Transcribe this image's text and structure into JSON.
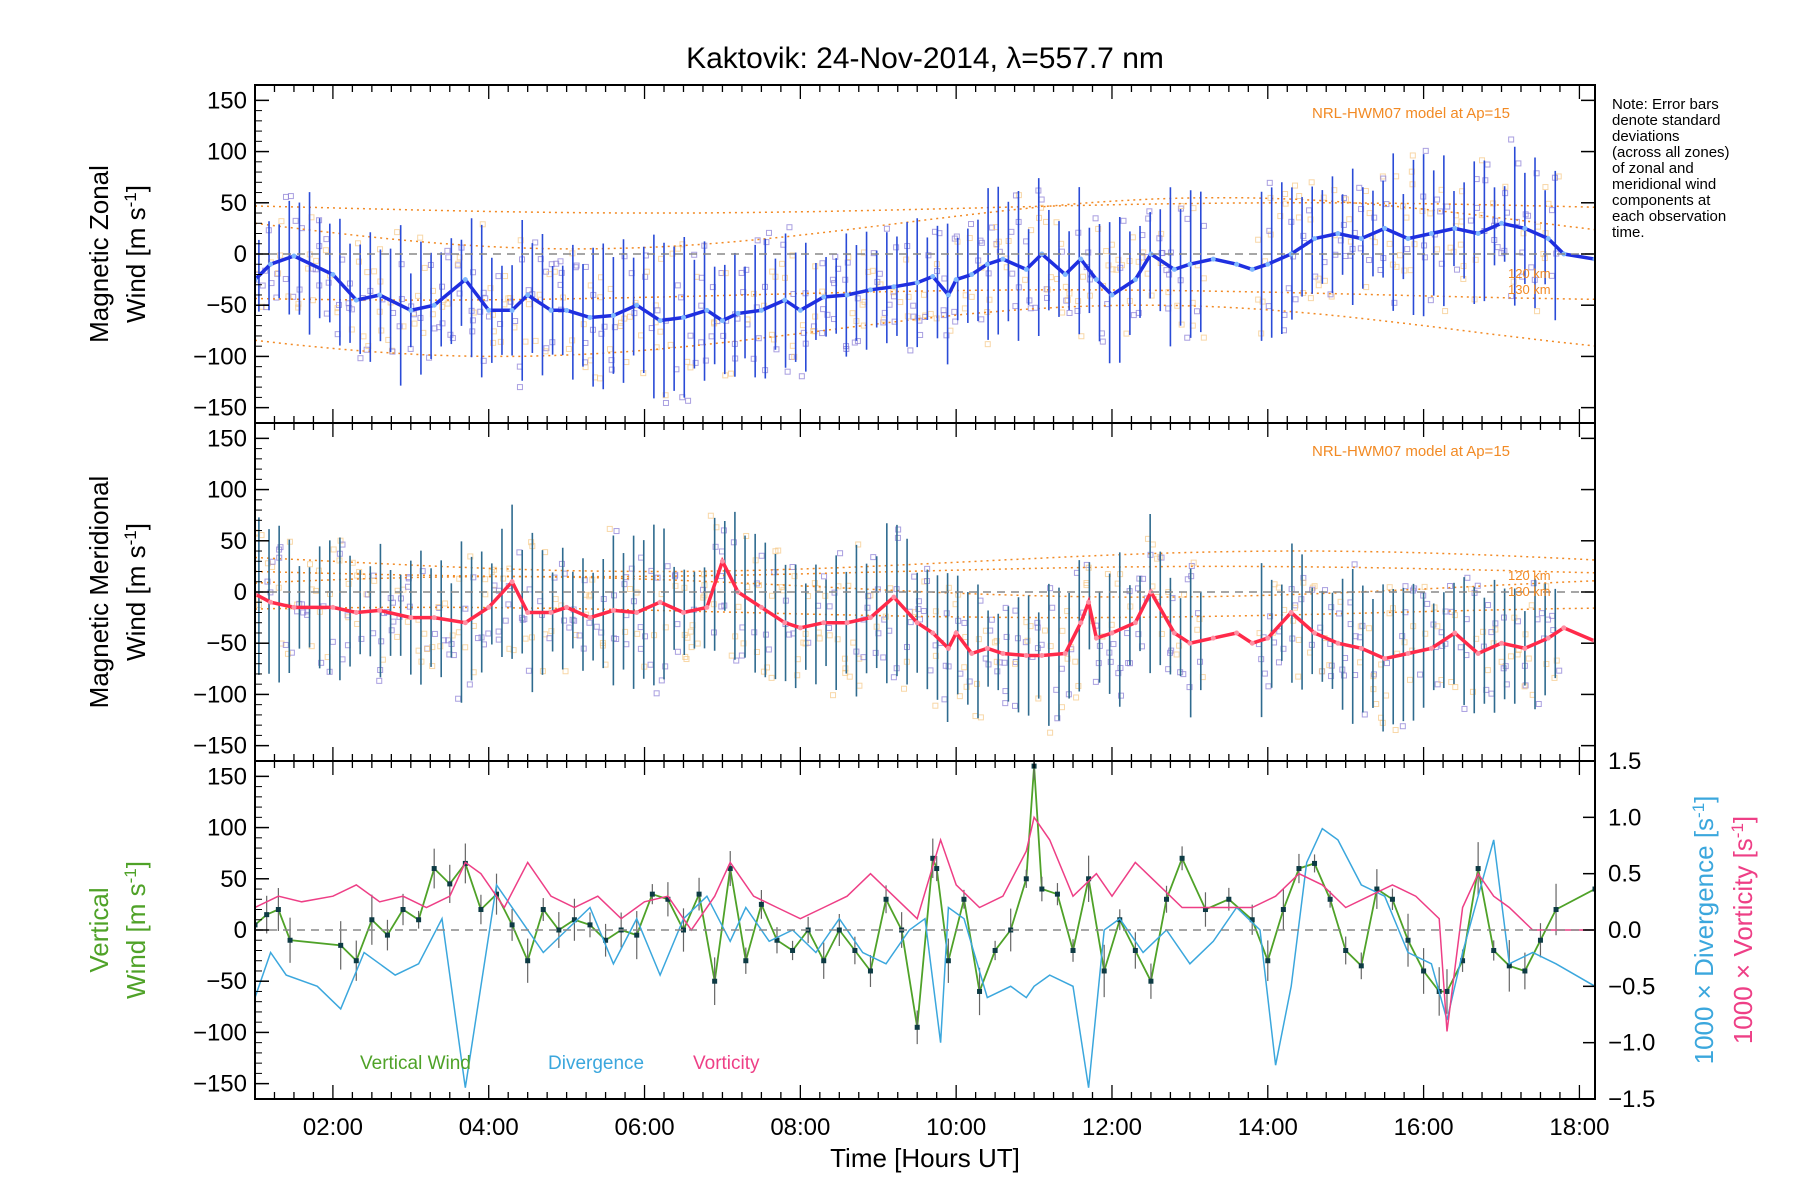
{
  "colors": {
    "zonal_line": "#1f2fe0",
    "zonal_bars": "#2a4bd7",
    "meridional_line": "#ff2a4a",
    "model": "#f28a24",
    "scatter_purple": "#8c7fd6",
    "scatter_orange": "#f6c98a",
    "vertical": "#4fa228",
    "divergence": "#3ba7dd",
    "vorticity": "#ee3f86",
    "zero_line": "#888888"
  },
  "chart_data": {
    "type": "line",
    "title": "Kaktovik: 24-Nov-2014, λ=557.7 nm",
    "xlabel": "Time [Hours UT]",
    "xlim": [
      1.0,
      18.2
    ],
    "x_tick_values": [
      2,
      4,
      6,
      8,
      10,
      12,
      14,
      16,
      18
    ],
    "x_tick_labels": [
      "02:00",
      "04:00",
      "06:00",
      "08:00",
      "10:00",
      "12:00",
      "14:00",
      "16:00",
      "18:00"
    ],
    "note_lines": [
      "Note: Error bars",
      "denote standard",
      "deviations",
      "(across all zones)",
      "of zonal and",
      "meridional wind",
      "components at",
      "each observation",
      "time."
    ],
    "panels": [
      {
        "id": "zonal",
        "ylabel_line1": "Magnetic Zonal",
        "ylabel_line2": "Wind [m s",
        "ylabel_sup": "-1",
        "ylabel_end": "]",
        "ylim": [
          -165,
          165
        ],
        "y_ticks": [
          -150,
          -100,
          -50,
          0,
          50,
          100,
          150
        ],
        "model_label": "NRL-HWM07 model at Ap=15",
        "model_alt_labels": [
          "120 km",
          "130 km"
        ],
        "series": [
          {
            "name": "Magnetic Zonal Wind",
            "x": [
              1.0,
              1.2,
              1.5,
              2.0,
              2.3,
              2.6,
              3.0,
              3.3,
              3.7,
              4.0,
              4.3,
              4.5,
              4.8,
              5.0,
              5.3,
              5.6,
              5.9,
              6.2,
              6.5,
              6.8,
              7.0,
              7.2,
              7.5,
              7.8,
              8.0,
              8.3,
              8.6,
              8.9,
              9.2,
              9.5,
              9.7,
              9.9,
              10.0,
              10.2,
              10.4,
              10.6,
              10.9,
              11.1,
              11.4,
              11.6,
              11.8,
              12.0,
              12.3,
              12.5,
              12.8,
              13.0,
              13.3,
              13.6,
              13.8,
              14.0,
              14.3,
              14.6,
              14.9,
              15.2,
              15.5,
              15.8,
              16.1,
              16.4,
              16.7,
              17.0,
              17.3,
              17.6,
              17.8,
              18.2
            ],
            "y": [
              -25,
              -10,
              -2,
              -20,
              -45,
              -40,
              -55,
              -50,
              -25,
              -55,
              -55,
              -40,
              -55,
              -55,
              -62,
              -60,
              -50,
              -65,
              -62,
              -55,
              -65,
              -58,
              -55,
              -45,
              -55,
              -42,
              -40,
              -35,
              -32,
              -28,
              -22,
              -40,
              -25,
              -20,
              -10,
              -5,
              -15,
              0,
              -20,
              -5,
              -25,
              -40,
              -25,
              0,
              -15,
              -10,
              -5,
              -10,
              -15,
              -10,
              0,
              15,
              20,
              15,
              25,
              15,
              20,
              25,
              20,
              30,
              25,
              15,
              0,
              -5
            ]
          }
        ]
      },
      {
        "id": "meridional",
        "ylabel_line1": "Magnetic Meridional",
        "ylabel_line2": "Wind [m s",
        "ylabel_sup": "-1",
        "ylabel_end": "]",
        "ylim": [
          -165,
          165
        ],
        "y_ticks": [
          -150,
          -100,
          -50,
          0,
          50,
          100,
          150
        ],
        "model_label": "NRL-HWM07 model at Ap=15",
        "model_alt_labels": [
          "120 km",
          "130 km"
        ],
        "series": [
          {
            "name": "Magnetic Meridional Wind",
            "x": [
              1.0,
              1.2,
              1.5,
              2.0,
              2.3,
              2.6,
              3.0,
              3.3,
              3.7,
              4.0,
              4.3,
              4.5,
              4.8,
              5.0,
              5.3,
              5.6,
              5.9,
              6.2,
              6.5,
              6.8,
              7.0,
              7.2,
              7.5,
              7.8,
              8.0,
              8.3,
              8.6,
              8.9,
              9.2,
              9.5,
              9.7,
              9.9,
              10.0,
              10.2,
              10.4,
              10.6,
              10.9,
              11.1,
              11.4,
              11.6,
              11.7,
              11.8,
              12.0,
              12.3,
              12.5,
              12.8,
              13.0,
              13.3,
              13.6,
              13.8,
              14.0,
              14.3,
              14.6,
              14.9,
              15.2,
              15.5,
              15.8,
              16.1,
              16.4,
              16.7,
              17.0,
              17.3,
              17.6,
              17.8,
              18.2
            ],
            "y": [
              -2,
              -10,
              -15,
              -15,
              -20,
              -18,
              -25,
              -25,
              -30,
              -15,
              10,
              -20,
              -20,
              -15,
              -25,
              -18,
              -20,
              -10,
              -20,
              -15,
              30,
              0,
              -15,
              -30,
              -35,
              -30,
              -30,
              -25,
              -5,
              -30,
              -40,
              -55,
              -40,
              -60,
              -55,
              -60,
              -62,
              -62,
              -60,
              -30,
              -10,
              -45,
              -40,
              -30,
              0,
              -40,
              -50,
              -45,
              -40,
              -50,
              -45,
              -20,
              -40,
              -50,
              -55,
              -65,
              -60,
              -55,
              -40,
              -60,
              -50,
              -55,
              -45,
              -35,
              -48
            ]
          }
        ]
      },
      {
        "id": "vertical",
        "ylabel_line1": "Vertical",
        "ylabel_line2": "Wind [m s",
        "ylabel_sup": "-1",
        "ylabel_end": "]",
        "ylim": [
          -165,
          165
        ],
        "y_ticks": [
          -150,
          -100,
          -50,
          0,
          50,
          100,
          150
        ],
        "y2_label_div": "1000 × Divergence [s",
        "y2_label_vort": "1000 × Vorticity [s",
        "y2_sup": "-1",
        "y2_end": "]",
        "y2lim": [
          -1.5,
          1.5
        ],
        "y2_ticks": [
          -1.5,
          -1.0,
          -0.5,
          0.0,
          0.5,
          1.0,
          1.5
        ],
        "y2_tick_labels": [
          "−1.5",
          "−1.0",
          "−0.5",
          "0.0",
          "0.5",
          "1.0",
          "1.5"
        ],
        "legend": [
          "Vertical Wind",
          "Divergence",
          "Vorticity"
        ],
        "series": [
          {
            "name": "Vertical Wind",
            "axis": "left",
            "x": [
              1.0,
              1.15,
              1.3,
              1.45,
              2.1,
              2.3,
              2.5,
              2.7,
              2.9,
              3.1,
              3.3,
              3.5,
              3.7,
              3.9,
              4.1,
              4.3,
              4.5,
              4.7,
              4.9,
              5.1,
              5.3,
              5.5,
              5.7,
              5.9,
              6.1,
              6.3,
              6.5,
              6.7,
              6.9,
              7.1,
              7.3,
              7.5,
              7.7,
              7.9,
              8.1,
              8.3,
              8.5,
              8.7,
              8.9,
              9.1,
              9.3,
              9.5,
              9.7,
              9.75,
              9.9,
              10.1,
              10.3,
              10.5,
              10.7,
              10.9,
              11.0,
              11.1,
              11.3,
              11.5,
              11.7,
              11.9,
              12.1,
              12.3,
              12.5,
              12.7,
              12.9,
              13.2,
              13.5,
              13.8,
              14.0,
              14.2,
              14.4,
              14.6,
              14.8,
              15.0,
              15.2,
              15.4,
              15.6,
              15.8,
              16.0,
              16.2,
              16.3,
              16.5,
              16.7,
              16.9,
              17.1,
              17.3,
              17.5,
              17.7,
              18.2
            ],
            "y": [
              5,
              15,
              20,
              -10,
              -15,
              -30,
              10,
              -5,
              20,
              10,
              60,
              45,
              65,
              20,
              35,
              5,
              -30,
              20,
              0,
              10,
              5,
              -10,
              0,
              -5,
              35,
              30,
              0,
              35,
              -50,
              60,
              -30,
              25,
              -10,
              -20,
              0,
              -30,
              0,
              -20,
              -40,
              30,
              0,
              -95,
              70,
              60,
              -30,
              30,
              -60,
              -20,
              0,
              50,
              160,
              40,
              35,
              -20,
              50,
              -40,
              10,
              -20,
              -50,
              30,
              70,
              20,
              30,
              10,
              -30,
              20,
              60,
              65,
              30,
              -20,
              -35,
              40,
              30,
              -10,
              -40,
              -60,
              -60,
              -30,
              60,
              -20,
              -35,
              -40,
              -10,
              20,
              40
            ]
          },
          {
            "name": "Divergence",
            "axis": "right",
            "x": [
              1.0,
              1.2,
              1.4,
              1.8,
              2.1,
              2.4,
              2.8,
              3.1,
              3.4,
              3.7,
              3.9,
              4.1,
              4.4,
              4.7,
              5.0,
              5.3,
              5.6,
              5.9,
              6.2,
              6.5,
              6.8,
              7.1,
              7.3,
              7.6,
              7.9,
              8.2,
              8.5,
              8.8,
              9.1,
              9.4,
              9.6,
              9.8,
              9.9,
              10.1,
              10.4,
              10.7,
              10.9,
              11.0,
              11.2,
              11.5,
              11.7,
              11.9,
              12.1,
              12.4,
              12.7,
              13.0,
              13.3,
              13.6,
              13.9,
              14.1,
              14.3,
              14.5,
              14.7,
              14.9,
              15.2,
              15.5,
              15.8,
              16.1,
              16.3,
              16.5,
              16.7,
              16.9,
              17.1,
              17.4,
              17.7,
              18.2
            ],
            "y": [
              -0.6,
              -0.2,
              -0.4,
              -0.5,
              -0.7,
              -0.2,
              -0.4,
              -0.3,
              0.1,
              -1.4,
              -0.5,
              0.4,
              0.1,
              -0.2,
              0.0,
              0.2,
              -0.3,
              0.1,
              -0.4,
              0.1,
              0.3,
              -0.1,
              0.2,
              -0.1,
              0.0,
              -0.2,
              0.1,
              -0.2,
              -0.3,
              0.0,
              0.1,
              -1.0,
              0.2,
              0.1,
              -0.6,
              -0.5,
              -0.6,
              -0.5,
              -0.4,
              -0.5,
              -1.4,
              0.0,
              0.1,
              -0.2,
              0.0,
              -0.3,
              -0.1,
              0.2,
              0.0,
              -1.2,
              -0.5,
              0.6,
              0.9,
              0.8,
              0.4,
              0.3,
              -0.2,
              -0.3,
              -0.8,
              -0.2,
              0.3,
              0.8,
              -0.3,
              -0.2,
              -0.3,
              -0.5
            ]
          },
          {
            "name": "Vorticity",
            "axis": "right",
            "x": [
              1.0,
              1.3,
              1.6,
              2.0,
              2.3,
              2.6,
              2.9,
              3.2,
              3.5,
              3.7,
              3.9,
              4.2,
              4.5,
              4.8,
              5.1,
              5.4,
              5.7,
              6.0,
              6.3,
              6.6,
              6.9,
              7.1,
              7.4,
              7.7,
              8.0,
              8.3,
              8.6,
              8.9,
              9.2,
              9.5,
              9.8,
              10.0,
              10.3,
              10.6,
              10.9,
              11.0,
              11.2,
              11.5,
              11.8,
              12.0,
              12.3,
              12.6,
              12.9,
              13.2,
              13.5,
              13.8,
              14.1,
              14.4,
              14.7,
              15.0,
              15.3,
              15.6,
              15.9,
              16.2,
              16.3,
              16.5,
              16.7,
              16.9,
              17.1,
              17.4,
              17.7,
              18.2
            ],
            "y": [
              0.2,
              0.3,
              0.25,
              0.3,
              0.4,
              0.25,
              0.3,
              0.2,
              0.3,
              0.6,
              0.5,
              0.2,
              0.6,
              0.3,
              0.2,
              0.3,
              0.1,
              0.25,
              0.3,
              0.0,
              0.3,
              0.6,
              0.3,
              0.2,
              0.1,
              0.2,
              0.3,
              0.5,
              0.3,
              0.1,
              0.8,
              0.4,
              0.2,
              0.3,
              0.7,
              1.0,
              0.8,
              0.3,
              0.5,
              0.3,
              0.6,
              0.4,
              0.2,
              0.2,
              0.2,
              0.2,
              0.3,
              0.5,
              0.4,
              0.2,
              0.3,
              0.4,
              0.3,
              0.1,
              -0.9,
              0.2,
              0.5,
              0.3,
              0.2,
              0.0,
              0.0,
              0.0
            ]
          }
        ]
      }
    ]
  }
}
